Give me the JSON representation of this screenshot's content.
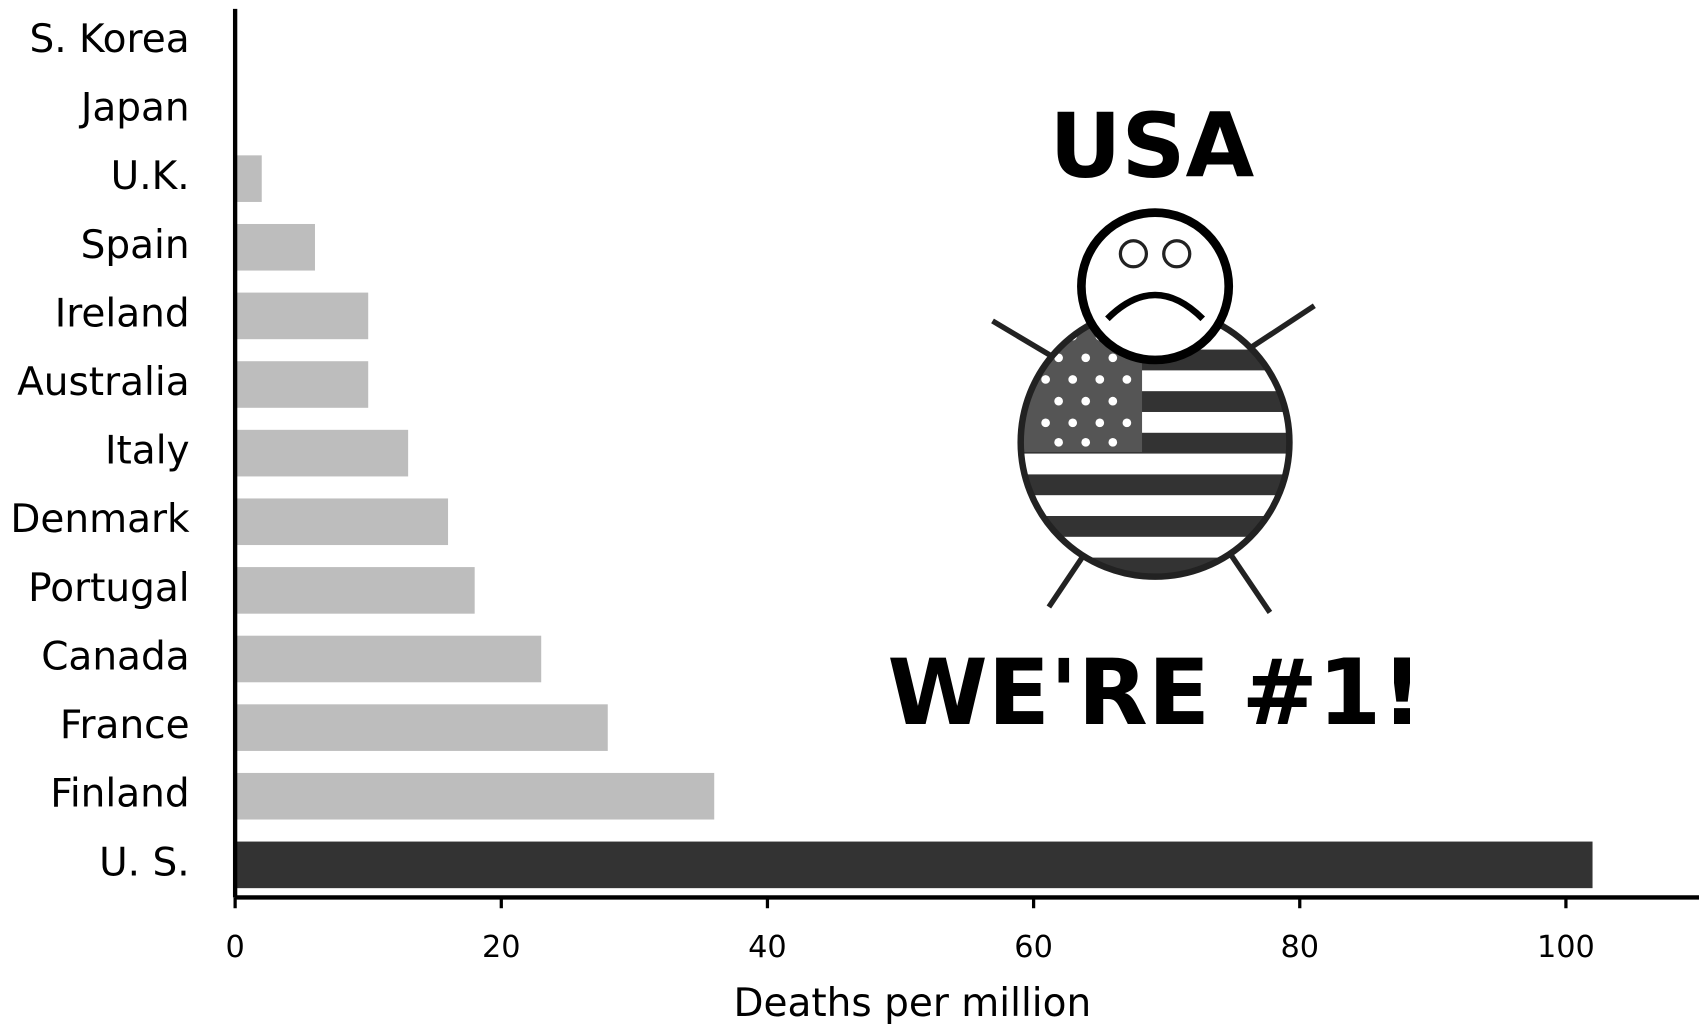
{
  "chart_data": {
    "type": "barh",
    "categories": [
      "S. Korea",
      "Japan",
      "U.K.",
      "Spain",
      "Ireland",
      "Australia",
      "Italy",
      "Denmark",
      "Portugal",
      "Canada",
      "France",
      "Finland",
      "U. S."
    ],
    "values": [
      0,
      0,
      2,
      6,
      10,
      10,
      13,
      16,
      18,
      23,
      28,
      36,
      102
    ],
    "colors": [
      "#bdbdbd",
      "#bdbdbd",
      "#bdbdbd",
      "#bdbdbd",
      "#bdbdbd",
      "#bdbdbd",
      "#bdbdbd",
      "#bdbdbd",
      "#bdbdbd",
      "#bdbdbd",
      "#bdbdbd",
      "#bdbdbd",
      "#333333"
    ],
    "xlim": [
      0,
      110
    ],
    "xticks": [
      0,
      20,
      40,
      60,
      80,
      100
    ],
    "xlabel": "Deaths per million",
    "annotations": [
      "USA",
      "WE'RE #1!"
    ]
  }
}
